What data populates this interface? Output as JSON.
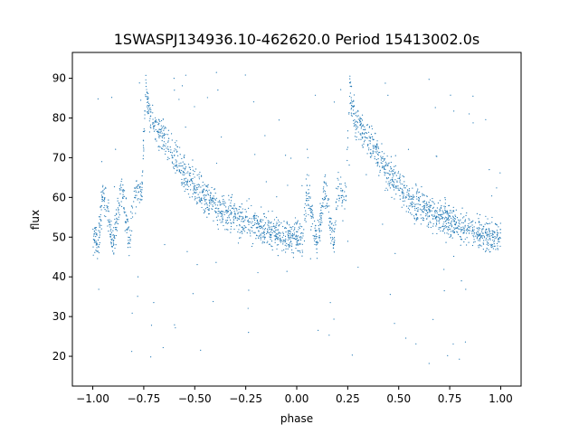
{
  "chart_data": {
    "type": "scatter",
    "title": "1SWASPJ134936.10-462620.0 Period 15413002.0s",
    "xlabel": "phase",
    "ylabel": "flux",
    "xlim": [
      -1.1,
      1.1
    ],
    "ylim": [
      12.5,
      96.5
    ],
    "xticks": [
      -1.0,
      -0.75,
      -0.5,
      -0.25,
      0.0,
      0.25,
      0.5,
      0.75,
      1.0
    ],
    "xtick_labels": [
      "−1.00",
      "−0.75",
      "−0.50",
      "−0.25",
      "0.00",
      "0.25",
      "0.50",
      "0.75",
      "1.00"
    ],
    "yticks": [
      20,
      30,
      40,
      50,
      60,
      70,
      80,
      90
    ],
    "ytick_labels": [
      "20",
      "30",
      "40",
      "50",
      "60",
      "70",
      "80",
      "90"
    ],
    "grid": false,
    "marker_color": "#1f77b4",
    "series": [
      {
        "description": "phase-folded light curve, shown twice (phase -1..0 and 0..1)",
        "profile": [
          {
            "x": -1.0,
            "y": 50
          },
          {
            "x": -0.97,
            "y": 49
          },
          {
            "x": -0.95,
            "y": 62
          },
          {
            "x": -0.9,
            "y": 48
          },
          {
            "x": -0.86,
            "y": 63
          },
          {
            "x": -0.82,
            "y": 48
          },
          {
            "x": -0.8,
            "y": 62
          },
          {
            "x": -0.76,
            "y": 60
          },
          {
            "x": -0.74,
            "y": 88
          },
          {
            "x": -0.72,
            "y": 80
          },
          {
            "x": -0.65,
            "y": 75
          },
          {
            "x": -0.55,
            "y": 66
          },
          {
            "x": -0.45,
            "y": 60
          },
          {
            "x": -0.35,
            "y": 56
          },
          {
            "x": -0.25,
            "y": 54
          },
          {
            "x": -0.15,
            "y": 52
          },
          {
            "x": -0.05,
            "y": 50
          },
          {
            "x": 0.0,
            "y": 50
          },
          {
            "x": 0.03,
            "y": 49
          },
          {
            "x": 0.05,
            "y": 62
          },
          {
            "x": 0.1,
            "y": 48
          },
          {
            "x": 0.14,
            "y": 63
          },
          {
            "x": 0.18,
            "y": 48
          },
          {
            "x": 0.2,
            "y": 62
          },
          {
            "x": 0.24,
            "y": 60
          },
          {
            "x": 0.26,
            "y": 88
          },
          {
            "x": 0.28,
            "y": 80
          },
          {
            "x": 0.35,
            "y": 75
          },
          {
            "x": 0.45,
            "y": 66
          },
          {
            "x": 0.55,
            "y": 60
          },
          {
            "x": 0.65,
            "y": 56
          },
          {
            "x": 0.75,
            "y": 54
          },
          {
            "x": 0.85,
            "y": 52
          },
          {
            "x": 0.95,
            "y": 50
          },
          {
            "x": 1.0,
            "y": 50
          }
        ]
      }
    ]
  }
}
